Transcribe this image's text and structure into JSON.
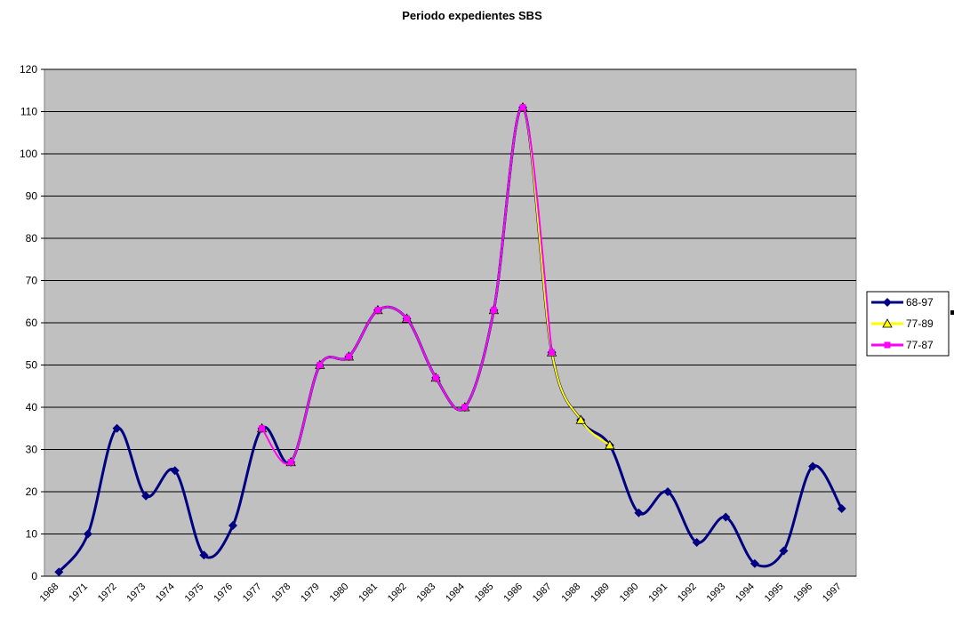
{
  "chart_data": {
    "type": "line",
    "title": "Periodo expedientes SBS",
    "categories": [
      "1968",
      "1971",
      "1972",
      "1973",
      "1974",
      "1975",
      "1976",
      "1977",
      "1978",
      "1979",
      "1980",
      "1981",
      "1982",
      "1983",
      "1984",
      "1985",
      "1986",
      "1987",
      "1988",
      "1989",
      "1990",
      "1991",
      "1992",
      "1993",
      "1994",
      "1995",
      "1996",
      "1997"
    ],
    "series": [
      {
        "name": "68-97",
        "color": "#000080",
        "marker": "diamond",
        "values": [
          1,
          10,
          35,
          19,
          25,
          5,
          12,
          35,
          27,
          50,
          52,
          63,
          61,
          47,
          40,
          63,
          111,
          53,
          37,
          31,
          15,
          20,
          8,
          14,
          3,
          6,
          26,
          16
        ]
      },
      {
        "name": "77-89",
        "color": "#ffff00",
        "marker": "triangle",
        "values": [
          null,
          null,
          null,
          null,
          null,
          null,
          null,
          35,
          27,
          50,
          52,
          63,
          61,
          47,
          40,
          63,
          111,
          53,
          37,
          31,
          null,
          null,
          null,
          null,
          null,
          null,
          null,
          null
        ]
      },
      {
        "name": "77-87",
        "color": "#ff00ff",
        "marker": "square",
        "values": [
          null,
          null,
          null,
          null,
          null,
          null,
          null,
          35,
          27,
          50,
          52,
          63,
          61,
          47,
          40,
          63,
          111,
          53,
          null,
          null,
          null,
          null,
          null,
          null,
          null,
          null,
          null,
          null
        ]
      }
    ],
    "ylim": [
      0,
      120
    ],
    "yticks": [
      0,
      10,
      20,
      30,
      40,
      50,
      60,
      70,
      80,
      90,
      100,
      110,
      120
    ],
    "grid": true,
    "smooth": true,
    "legend": "right"
  }
}
